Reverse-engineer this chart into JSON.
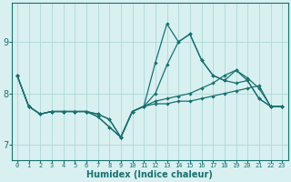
{
  "xlabel": "Humidex (Indice chaleur)",
  "bg_color": "#d8f0f0",
  "grid_color": "#b0d8d8",
  "line_color": "#1a7070",
  "xlim": [
    -0.5,
    23.5
  ],
  "ylim": [
    6.7,
    9.75
  ],
  "yticks": [
    7,
    8,
    9
  ],
  "xticks": [
    0,
    1,
    2,
    3,
    4,
    5,
    6,
    7,
    8,
    9,
    10,
    11,
    12,
    13,
    14,
    15,
    16,
    17,
    18,
    19,
    20,
    21,
    22,
    23
  ],
  "curves": [
    [
      8.35,
      7.75,
      7.6,
      7.65,
      7.65,
      7.65,
      7.65,
      7.6,
      7.5,
      7.15,
      7.65,
      7.75,
      7.8,
      7.8,
      7.85,
      7.85,
      7.9,
      7.95,
      8.0,
      8.05,
      8.1,
      8.15,
      7.75,
      7.75
    ],
    [
      8.35,
      7.75,
      7.6,
      7.65,
      7.65,
      7.65,
      7.65,
      7.6,
      7.5,
      7.15,
      7.65,
      7.75,
      7.85,
      7.9,
      7.95,
      8.0,
      8.1,
      8.2,
      8.35,
      8.45,
      8.3,
      8.1,
      7.75,
      7.75
    ],
    [
      8.35,
      7.75,
      7.6,
      7.65,
      7.65,
      7.65,
      7.65,
      7.55,
      7.35,
      7.15,
      7.65,
      7.75,
      8.0,
      8.55,
      9.0,
      9.15,
      8.65,
      8.35,
      8.25,
      8.45,
      8.25,
      7.9,
      7.75,
      7.75
    ],
    [
      8.35,
      7.75,
      7.6,
      7.65,
      7.65,
      7.65,
      7.65,
      7.55,
      7.35,
      7.15,
      7.65,
      7.75,
      8.6,
      9.35,
      9.0,
      9.15,
      8.65,
      8.35,
      8.25,
      8.2,
      8.25,
      7.9,
      7.75,
      7.75
    ]
  ]
}
